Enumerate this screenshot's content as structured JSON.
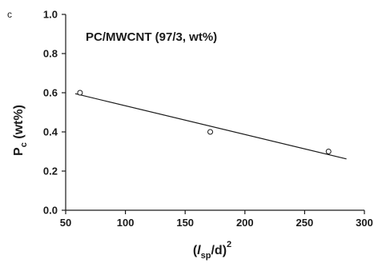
{
  "chart_data": {
    "type": "scatter",
    "panel_label": "c",
    "title": "PC/MWCNT (97/3, wt%)",
    "xlabel": {
      "open": "(",
      "italic": "l",
      "sub": "sp",
      "rest": "/d)",
      "sup": "2"
    },
    "ylabel": {
      "main": "P",
      "sub": "c",
      "rest": " (wt%)"
    },
    "xlim": [
      50,
      300
    ],
    "ylim": [
      0.0,
      1.0
    ],
    "x_ticks": [
      "50",
      "100",
      "150",
      "200",
      "250",
      "300"
    ],
    "y_ticks": [
      "0.0",
      "0.2",
      "0.4",
      "0.6",
      "0.8",
      "1.0"
    ],
    "grid": false,
    "series": [
      {
        "marker": "open-circle",
        "points": [
          {
            "x": 62,
            "y": 0.6
          },
          {
            "x": 171,
            "y": 0.4
          },
          {
            "x": 270,
            "y": 0.3
          }
        ]
      }
    ],
    "fit_line": {
      "x": [
        58,
        285
      ],
      "y": [
        0.595,
        0.262
      ]
    },
    "colors": {
      "axis": "#1a1a1a",
      "marker": "#1a1a1a",
      "line": "#1a1a1a"
    }
  }
}
